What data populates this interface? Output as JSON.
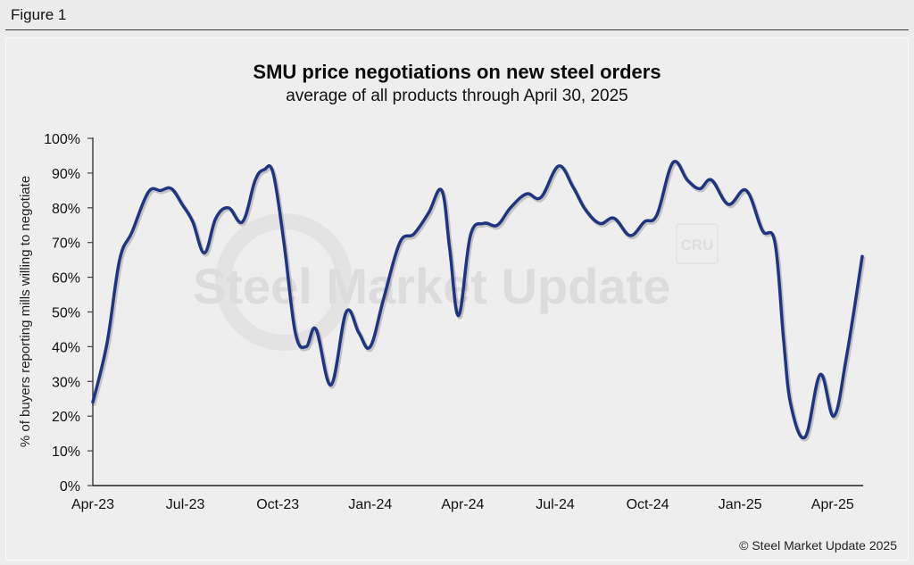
{
  "figure": {
    "label": "Figure 1",
    "copyright": "© Steel Market Update 2025",
    "watermark": {
      "bold": "Steel Market",
      "light": " Update",
      "badge": "CRU"
    }
  },
  "colors": {
    "line": "#1f3580",
    "axis": "#444444",
    "background": "#eeeeee"
  },
  "chart_data": {
    "type": "line",
    "title": "SMU price negotiations on new steel orders",
    "subtitle": "average of all products through April 30, 2025",
    "xlabel": "",
    "ylabel": "% of buyers reporting mills willing to negotiate",
    "x_unit": "months since Apr-2023",
    "xlim": [
      0,
      25
    ],
    "ylim": [
      0,
      100
    ],
    "grid": false,
    "legend": "none",
    "x_ticks": [
      {
        "pos": 0,
        "label": "Apr-23"
      },
      {
        "pos": 3,
        "label": "Jul-23"
      },
      {
        "pos": 6,
        "label": "Oct-23"
      },
      {
        "pos": 9,
        "label": "Jan-24"
      },
      {
        "pos": 12,
        "label": "Apr-24"
      },
      {
        "pos": 15,
        "label": "Jul-24"
      },
      {
        "pos": 18,
        "label": "Oct-24"
      },
      {
        "pos": 21,
        "label": "Jan-25"
      },
      {
        "pos": 24,
        "label": "Apr-25"
      }
    ],
    "y_ticks": [
      {
        "pos": 0,
        "label": "0%"
      },
      {
        "pos": 10,
        "label": "10%"
      },
      {
        "pos": 20,
        "label": "20%"
      },
      {
        "pos": 30,
        "label": "30%"
      },
      {
        "pos": 40,
        "label": "40%"
      },
      {
        "pos": 50,
        "label": "50%"
      },
      {
        "pos": 60,
        "label": "60%"
      },
      {
        "pos": 70,
        "label": "70%"
      },
      {
        "pos": 80,
        "label": "80%"
      },
      {
        "pos": 90,
        "label": "90%"
      },
      {
        "pos": 100,
        "label": "100%"
      }
    ],
    "series": [
      {
        "name": "Mills willing to negotiate",
        "x": [
          0,
          0.46,
          0.87,
          1.27,
          1.8,
          2.2,
          2.55,
          2.9,
          3.24,
          3.62,
          3.99,
          4.4,
          4.86,
          5.27,
          5.56,
          5.85,
          6.2,
          6.57,
          6.92,
          7.24,
          7.73,
          8.22,
          8.63,
          9.0,
          9.44,
          9.96,
          10.42,
          10.89,
          11.32,
          11.58,
          11.87,
          12.25,
          12.68,
          13.12,
          13.55,
          14.07,
          14.54,
          15.11,
          15.58,
          15.98,
          16.45,
          16.91,
          17.43,
          17.9,
          18.3,
          18.82,
          19.29,
          19.69,
          20.07,
          20.62,
          21.2,
          21.72,
          22.13,
          22.41,
          22.65,
          23.11,
          23.6,
          24.04,
          24.45,
          24.96
        ],
        "values": [
          24,
          41,
          65,
          73,
          84.5,
          85,
          85.5,
          81,
          76,
          67,
          77,
          80,
          76,
          88,
          91,
          90,
          70,
          44,
          40,
          45,
          29,
          50,
          44,
          40,
          54,
          70,
          72.5,
          78.5,
          85,
          68,
          49,
          72,
          75.5,
          75,
          80,
          84,
          83,
          92,
          86,
          79.5,
          75.5,
          77,
          72,
          76,
          78,
          93,
          88,
          85.5,
          88,
          81,
          85,
          73.5,
          70,
          42,
          23,
          14,
          32,
          20,
          37,
          66
        ]
      }
    ]
  }
}
